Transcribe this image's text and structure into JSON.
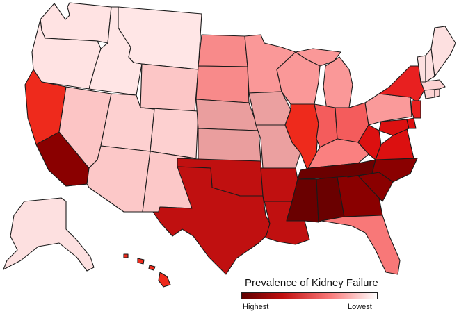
{
  "legend": {
    "title": "Prevalence of Kidney Failure",
    "high_label": "Highest",
    "low_label": "Lowest",
    "gradient_start": "#5e0000",
    "gradient_end": "#ffffff"
  },
  "colors": {
    "WA": "#ffe3e3",
    "OR": "#ffe3e3",
    "ID": "#ffe5e5",
    "MT": "#ffe6e6",
    "WY": "#fcc6c6",
    "CA": "#ee2a1c",
    "NV": "#fcc5c5",
    "UT": "#fdd0d0",
    "CO": "#fdd0d0",
    "AZ": "#fcc8c8",
    "NM": "#fcc8c8",
    "ND": "#f88a8a",
    "SD": "#f88a8a",
    "NE": "#ea9e9e",
    "KS": "#ea9e9e",
    "OK": "#c01010",
    "TX": "#c01010",
    "MN": "#fa9898",
    "IA": "#eba0a0",
    "MO": "#eba0a0",
    "AR": "#c01010",
    "LA": "#c01010",
    "WI": "#fa9898",
    "IL": "#ee2a1c",
    "MI": "#fa9898",
    "IN": "#f45c5c",
    "OH": "#f45c5c",
    "KY": "#fa8080",
    "TN": "#6a0000",
    "MS": "#6a0000",
    "AL": "#6a0000",
    "GA": "#8a0000",
    "FL": "#f87878",
    "SC": "#8a0000",
    "NC": "#8a0000",
    "VA": "#dc1010",
    "WV": "#dc1010",
    "MD": "#dc1010",
    "DE": "#dc1010",
    "PA": "#fa9a9a",
    "NY": "#e82020",
    "NJ": "#e82020",
    "CT": "#fcd2d2",
    "RI": "#fcd2d2",
    "MA": "#fcd2d2",
    "VT": "#fde0e0",
    "NH": "#fde0e0",
    "ME": "#fde0e0",
    "AK": "#fde0e0",
    "HI": "#ee2a1c",
    "SCA": "#8a0000"
  }
}
